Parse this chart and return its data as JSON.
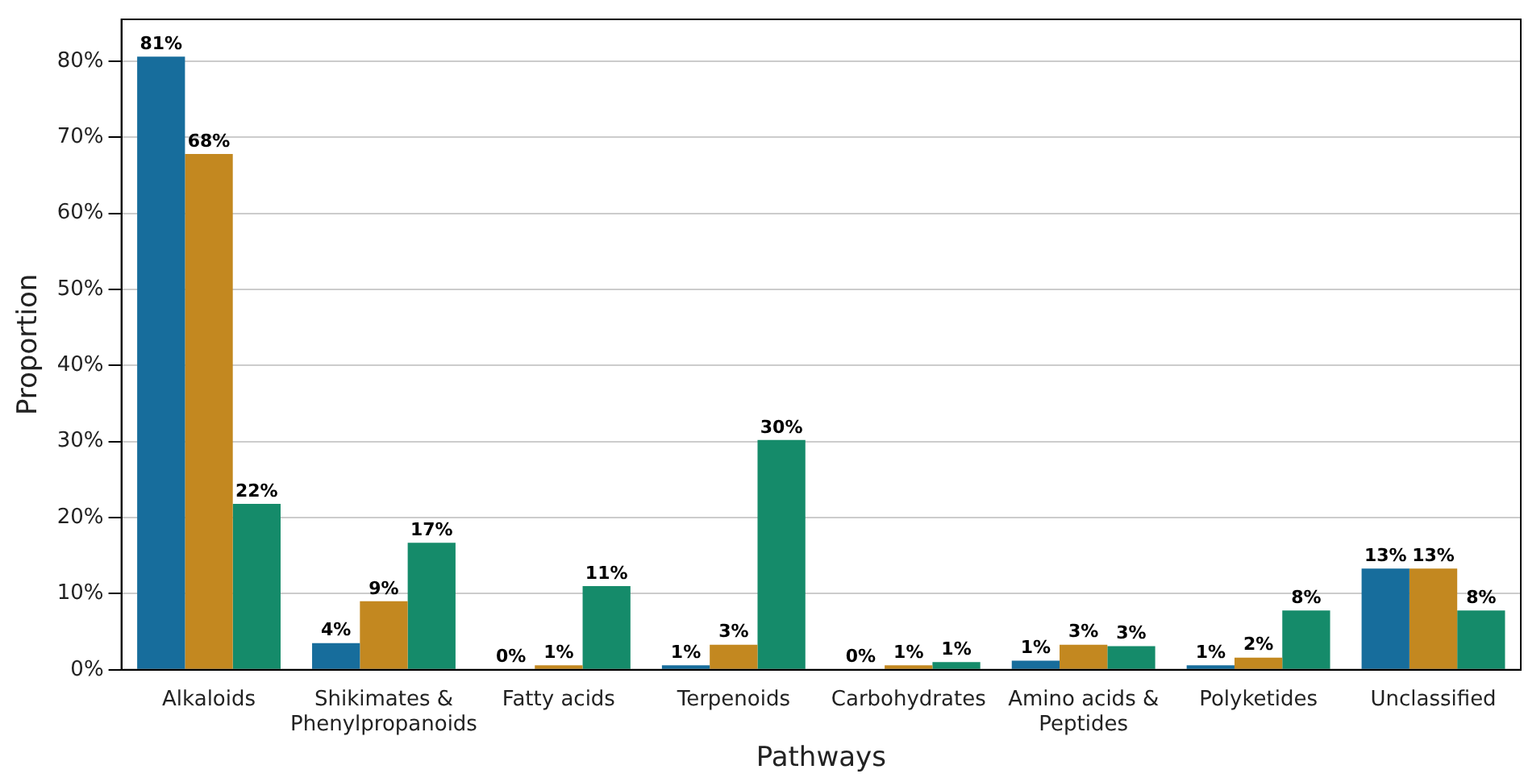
{
  "chart_data": {
    "type": "bar",
    "xlabel": "Pathways",
    "ylabel": "Proportion",
    "categories": [
      "Alkaloids",
      "Shikimates & Phenylpropanoids",
      "Fatty acids",
      "Terpenoids",
      "Carbohydrates",
      "Amino acids & Peptides",
      "Polyketides",
      "Unclassified"
    ],
    "series": [
      {
        "color": "#176d9c",
        "values": [
          80.6,
          3.5,
          0.1,
          0.6,
          0.1,
          1.2,
          0.6,
          13.3
        ],
        "value_labels": [
          "81%",
          "4%",
          "0%",
          "1%",
          "0%",
          "1%",
          "1%",
          "13%"
        ]
      },
      {
        "color": "#c38820",
        "values": [
          67.8,
          9.0,
          0.6,
          3.3,
          0.6,
          3.3,
          1.6,
          13.3
        ],
        "value_labels": [
          "68%",
          "9%",
          "1%",
          "3%",
          "1%",
          "3%",
          "2%",
          "13%"
        ]
      },
      {
        "color": "#158b6a",
        "values": [
          21.8,
          16.7,
          11.0,
          30.2,
          1.0,
          3.1,
          7.8,
          7.8
        ],
        "value_labels": [
          "22%",
          "17%",
          "11%",
          "30%",
          "1%",
          "3%",
          "8%",
          "8%"
        ]
      }
    ],
    "ylim": [
      0,
      85.5
    ],
    "yticks": [
      {
        "value": 0,
        "label": "0%"
      },
      {
        "value": 10,
        "label": "10%"
      },
      {
        "value": 20,
        "label": "20%"
      },
      {
        "value": 30,
        "label": "30%"
      },
      {
        "value": 40,
        "label": "40%"
      },
      {
        "value": 50,
        "label": "50%"
      },
      {
        "value": 60,
        "label": "60%"
      },
      {
        "value": 70,
        "label": "70%"
      },
      {
        "value": 80,
        "label": "80%"
      }
    ],
    "grid": "y",
    "legend": false
  }
}
